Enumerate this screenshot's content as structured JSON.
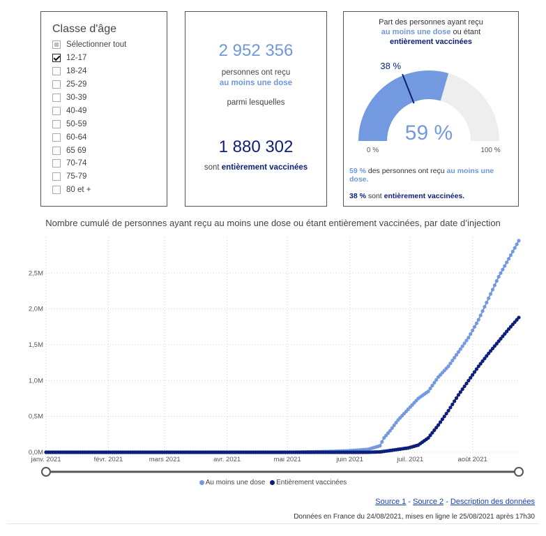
{
  "age_filter": {
    "title": "Classe d'âge",
    "items": [
      {
        "label": "Sélectionner tout",
        "state": "partial"
      },
      {
        "label": "12-17",
        "state": "checked"
      },
      {
        "label": "18-24",
        "state": "unchecked"
      },
      {
        "label": "25-29",
        "state": "unchecked"
      },
      {
        "label": "30-39",
        "state": "unchecked"
      },
      {
        "label": "40-49",
        "state": "unchecked"
      },
      {
        "label": "50-59",
        "state": "unchecked"
      },
      {
        "label": "60-64",
        "state": "unchecked"
      },
      {
        "label": "65 69",
        "state": "unchecked"
      },
      {
        "label": "70-74",
        "state": "unchecked"
      },
      {
        "label": "75-79",
        "state": "unchecked"
      },
      {
        "label": "80 et +",
        "state": "unchecked"
      }
    ]
  },
  "counts": {
    "first_value": "2 952 356",
    "first_text": "personnes ont reçu",
    "first_highlight": "au moins une dose",
    "middle_text": "parmi lesquelles",
    "second_value": "1 880 302",
    "second_text": "sont",
    "second_highlight": "entièrement vaccinées"
  },
  "gauge": {
    "title_line1": "Part des personnes ayant reçu",
    "title_hl1": "au moins une dose",
    "title_mid": "ou étant",
    "title_hl2": "entièrement vaccinées",
    "value_percent": 59,
    "value_label": "59 %",
    "marker_percent": 38,
    "marker_label": "38 %",
    "min_label": "0 %",
    "max_label": "100 %",
    "foot1_pct": "59 %",
    "foot1_text": "des personnes ont reçu",
    "foot1_hl": "au moins une dose.",
    "foot2_pct": "38 %",
    "foot2_text": "sont",
    "foot2_hl": "entièrement vaccinées.",
    "colors": {
      "fill": "#7399e0",
      "track": "#eeeeee",
      "marker": "#0c1f7a"
    }
  },
  "chart_title": "Nombre cumulé de personnes ayant reçu au moins une dose ou étant entièrement vaccinées, par date d’injection",
  "chart_data": {
    "type": "line",
    "x_tick_labels": [
      "janv. 2021",
      "févr. 2021",
      "mars 2021",
      "avr. 2021",
      "mai 2021",
      "juin 2021",
      "juil. 2021",
      "août 2021"
    ],
    "x_tick_days": [
      0,
      31,
      59,
      90,
      120,
      151,
      181,
      212
    ],
    "x_range_days": [
      0,
      235
    ],
    "ylim": [
      0,
      3000000
    ],
    "y_ticks": [
      0,
      500000,
      1000000,
      1500000,
      2000000,
      2500000
    ],
    "y_tick_labels": [
      "0,0M",
      "0,5M",
      "1,0M",
      "1,5M",
      "2,0M",
      "2,5M"
    ],
    "grid": "dotted",
    "legend_position": "bottom",
    "series": [
      {
        "name": "Au moins une dose",
        "color": "#7399e0",
        "points": [
          [
            0,
            0
          ],
          [
            120,
            0
          ],
          [
            140,
            10000
          ],
          [
            150,
            20000
          ],
          [
            160,
            40000
          ],
          [
            166,
            90000
          ],
          [
            168,
            200000
          ],
          [
            171,
            300000
          ],
          [
            175,
            450000
          ],
          [
            180,
            600000
          ],
          [
            185,
            750000
          ],
          [
            190,
            850000
          ],
          [
            195,
            1050000
          ],
          [
            200,
            1200000
          ],
          [
            205,
            1400000
          ],
          [
            210,
            1600000
          ],
          [
            215,
            1850000
          ],
          [
            220,
            2150000
          ],
          [
            225,
            2450000
          ],
          [
            230,
            2700000
          ],
          [
            235,
            2952356
          ]
        ]
      },
      {
        "name": "Entièrement vaccinées",
        "color": "#0c1f7a",
        "points": [
          [
            0,
            0
          ],
          [
            160,
            0
          ],
          [
            166,
            5000
          ],
          [
            170,
            20000
          ],
          [
            175,
            40000
          ],
          [
            180,
            60000
          ],
          [
            185,
            100000
          ],
          [
            190,
            200000
          ],
          [
            195,
            380000
          ],
          [
            200,
            580000
          ],
          [
            205,
            800000
          ],
          [
            210,
            1000000
          ],
          [
            215,
            1200000
          ],
          [
            220,
            1380000
          ],
          [
            225,
            1550000
          ],
          [
            230,
            1720000
          ],
          [
            235,
            1880302
          ]
        ]
      }
    ]
  },
  "links": {
    "source1": "Source 1",
    "sep1": "-",
    "source2": "Source 2",
    "sep2": "-",
    "description": "Description des données"
  },
  "footnote": "Données en France du 24/08/2021, mises en ligne le 25/08/2021 après 17h30"
}
